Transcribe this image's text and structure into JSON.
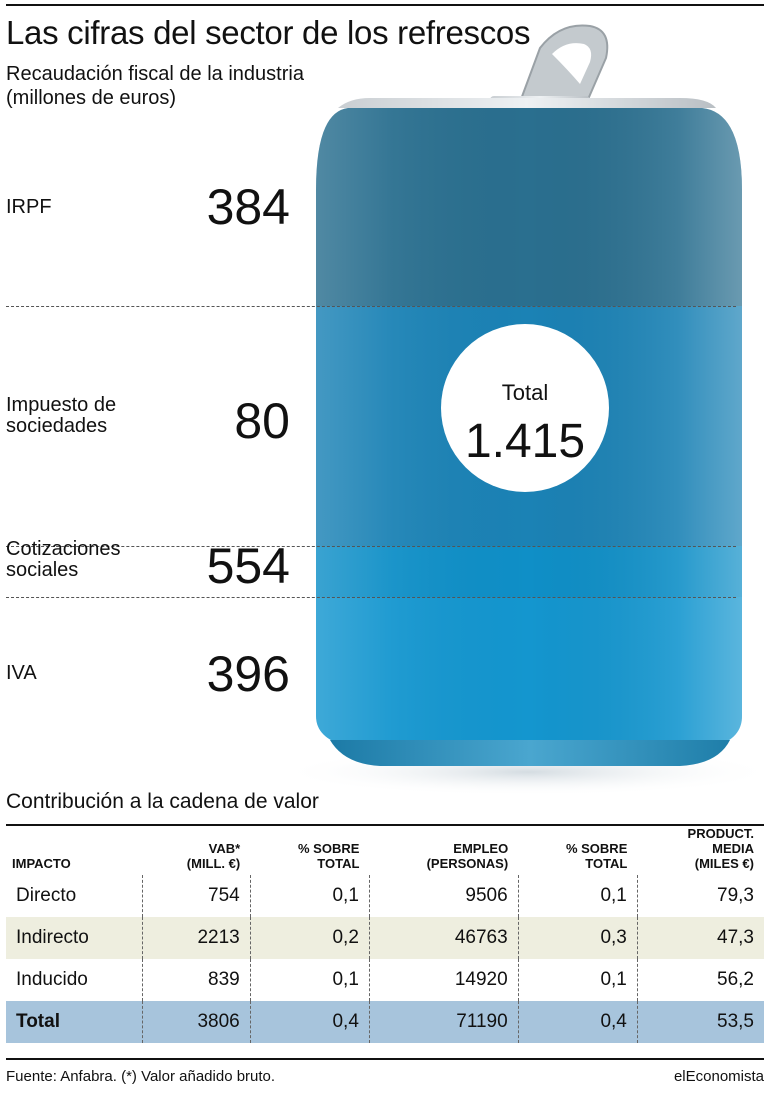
{
  "header": {
    "title": "Las cifras del sector de los refrescos",
    "subtitle": "Recaudación fiscal de la industria (millones de euros)"
  },
  "chart_data": {
    "type": "stacked-bar",
    "title": "Las cifras del sector de los refrescos",
    "subtitle": "Recaudación fiscal de la industria (millones de euros)",
    "categories": [
      "IRPF",
      "Impuesto de sociedades",
      "Cotizaciones sociales",
      "IVA"
    ],
    "values": [
      384,
      80,
      554,
      396
    ],
    "value_labels": [
      "384",
      "80",
      "554",
      "396"
    ],
    "total_label": "Total",
    "total_value": "1.415",
    "colors": [
      "#2a6f8f",
      "#1b82b5",
      "#0f8fc7",
      "#1496cf"
    ]
  },
  "table": {
    "title": "Contribución a la cadena de valor",
    "headers": [
      [
        "IMPACTO"
      ],
      [
        "VAB*",
        "(MILL. €)"
      ],
      [
        "% SOBRE",
        "TOTAL"
      ],
      [
        "EMPLEO",
        "(PERSONAS)"
      ],
      [
        "% SOBRE",
        "TOTAL"
      ],
      [
        "PRODUCT.",
        "MEDIA",
        "(MILES €)"
      ]
    ],
    "rows": [
      [
        "Directo",
        "754",
        "0,1",
        "9506",
        "0,1",
        "79,3"
      ],
      [
        "Indirecto",
        "2213",
        "0,2",
        "46763",
        "0,3",
        "47,3"
      ],
      [
        "Inducido",
        "839",
        "0,1",
        "14920",
        "0,1",
        "56,2"
      ],
      [
        "Total",
        "3806",
        "0,4",
        "71190",
        "0,4",
        "53,5"
      ]
    ],
    "colors": {
      "shaded_row": "#eeeedf",
      "total_row": "#a7c4dc"
    }
  },
  "footer": {
    "source": "Fuente: Anfabra. (*) Valor añadido bruto.",
    "brand": "elEconomista"
  }
}
